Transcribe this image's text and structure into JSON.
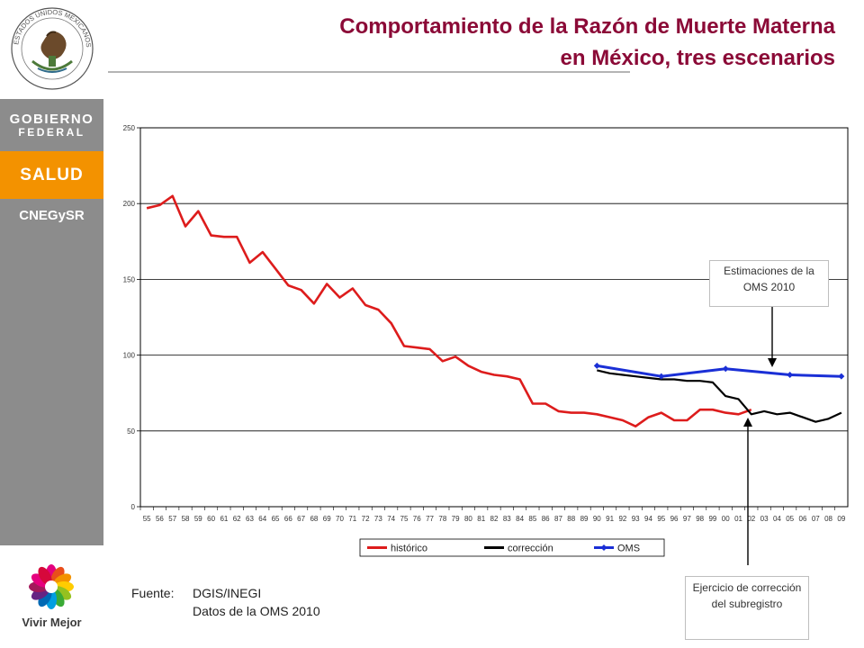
{
  "slide": {
    "title_line1": "Comportamiento de la Razón de Muerte Materna",
    "title_line2": "en México, tres escenarios"
  },
  "sidebar": {
    "seal_text": "ESTADOS UNIDOS MEXICANOS",
    "gobierno_line1": "GOBIERNO",
    "gobierno_line2": "FEDERAL",
    "salud": "SALUD",
    "agency": "CNEGySR",
    "vivir_mejor": "Vivir Mejor"
  },
  "callouts": {
    "oms": "Estimaciones de la OMS 2010",
    "correccion": "Ejercicio de corrección del subregistro"
  },
  "source": {
    "label": "Fuente:",
    "line1": "DGIS/INEGI",
    "line2": "Datos de la OMS 2010"
  },
  "colors": {
    "title": "#8b0a37",
    "historico": "#dd1c1c",
    "correccion": "#000000",
    "oms": "#1a2fd6",
    "orange": "#f39200",
    "sidebar_gray": "#8c8c8c"
  },
  "chart_data": {
    "type": "line",
    "title": "",
    "xlabel": "",
    "ylabel": "",
    "ylim": [
      0,
      250
    ],
    "yticks": [
      0,
      50,
      100,
      150,
      200,
      250
    ],
    "grid": true,
    "legend_position": "bottom",
    "categories": [
      "55",
      "56",
      "57",
      "58",
      "59",
      "60",
      "61",
      "62",
      "63",
      "64",
      "65",
      "66",
      "67",
      "68",
      "69",
      "70",
      "71",
      "72",
      "73",
      "74",
      "75",
      "76",
      "77",
      "78",
      "79",
      "80",
      "81",
      "82",
      "83",
      "84",
      "85",
      "86",
      "87",
      "88",
      "89",
      "90",
      "91",
      "92",
      "93",
      "94",
      "95",
      "96",
      "97",
      "98",
      "99",
      "00",
      "01",
      "02",
      "03",
      "04",
      "05",
      "06",
      "07",
      "08",
      "09"
    ],
    "series": [
      {
        "name": "histórico",
        "color": "#dd1c1c",
        "marker": "none",
        "values": [
          197,
          199,
          205,
          185,
          195,
          179,
          178,
          178,
          161,
          168,
          157,
          146,
          143,
          134,
          147,
          138,
          144,
          133,
          130,
          121,
          106,
          105,
          104,
          96,
          99,
          93,
          89,
          87,
          86,
          84,
          68,
          68,
          63,
          62,
          62,
          61,
          59,
          57,
          53,
          59,
          62,
          57,
          57,
          64,
          64,
          62,
          61,
          64,
          null,
          null,
          null,
          null,
          null,
          null,
          null
        ]
      },
      {
        "name": "corrección",
        "color": "#000000",
        "marker": "none",
        "values": [
          null,
          null,
          null,
          null,
          null,
          null,
          null,
          null,
          null,
          null,
          null,
          null,
          null,
          null,
          null,
          null,
          null,
          null,
          null,
          null,
          null,
          null,
          null,
          null,
          null,
          null,
          null,
          null,
          null,
          null,
          null,
          null,
          null,
          null,
          null,
          90,
          88,
          87,
          86,
          85,
          84,
          84,
          83,
          83,
          82,
          73,
          71,
          61,
          63,
          61,
          62,
          59,
          56,
          58,
          62
        ]
      },
      {
        "name": "OMS",
        "color": "#1a2fd6",
        "marker": "diamond",
        "values": [
          null,
          null,
          null,
          null,
          null,
          null,
          null,
          null,
          null,
          null,
          null,
          null,
          null,
          null,
          null,
          null,
          null,
          null,
          null,
          null,
          null,
          null,
          null,
          null,
          null,
          null,
          null,
          null,
          null,
          null,
          null,
          null,
          null,
          null,
          null,
          93,
          null,
          null,
          null,
          null,
          86,
          null,
          null,
          null,
          null,
          91,
          null,
          null,
          null,
          null,
          87,
          null,
          null,
          null,
          86
        ]
      }
    ]
  }
}
